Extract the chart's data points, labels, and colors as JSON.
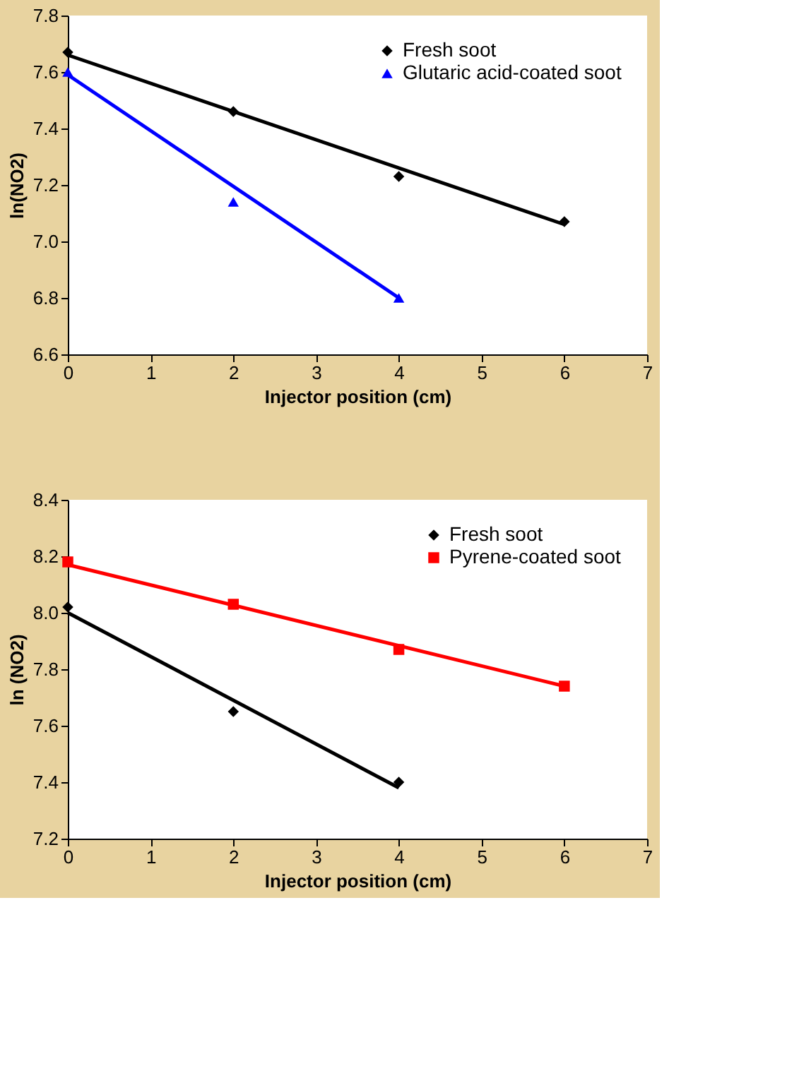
{
  "chart_data": [
    {
      "type": "scatter",
      "xlabel": "Injector position (cm)",
      "ylabel": "ln(NO2)",
      "xlim": [
        0,
        7
      ],
      "xticks": [
        0,
        1,
        2,
        3,
        4,
        5,
        6,
        7
      ],
      "ylim": [
        6.6,
        7.8
      ],
      "yticks": [
        {
          "value": 6.6,
          "label": "6.6"
        },
        {
          "value": 6.8,
          "label": "6.8"
        },
        {
          "value": 7.0,
          "label": "7.0"
        },
        {
          "value": 7.2,
          "label": "7.2"
        },
        {
          "value": 7.4,
          "label": "7.4"
        },
        {
          "value": 7.6,
          "label": "7.6"
        },
        {
          "value": 7.8,
          "label": "7.8"
        }
      ],
      "grid": false,
      "legend": "top right",
      "x": [
        0,
        2,
        4,
        6
      ],
      "series": [
        {
          "name": "Fresh soot",
          "color": "#000000",
          "marker": "diamond",
          "values": [
            7.67,
            7.46,
            7.23,
            7.07
          ]
        },
        {
          "name": "Glutaric acid-coated soot",
          "color": "#0000ff",
          "marker": "triangle",
          "x": [
            0,
            2,
            4
          ],
          "values": [
            7.6,
            7.14,
            6.8
          ]
        },
        {
          "type": "line",
          "color": "#000000",
          "x": [
            0,
            6
          ],
          "values": [
            7.66,
            7.06
          ]
        },
        {
          "type": "line",
          "color": "#0000ff",
          "x": [
            0,
            4
          ],
          "values": [
            7.59,
            6.8
          ]
        }
      ]
    },
    {
      "type": "scatter",
      "xlabel": "Injector position (cm)",
      "ylabel": "ln (NO2)",
      "xlim": [
        0,
        7
      ],
      "xticks": [
        0,
        1,
        2,
        3,
        4,
        5,
        6,
        7
      ],
      "ylim": [
        7.2,
        8.4
      ],
      "yticks": [
        {
          "value": 7.2,
          "label": "7.2"
        },
        {
          "value": 7.4,
          "label": "7.4"
        },
        {
          "value": 7.6,
          "label": "7.6"
        },
        {
          "value": 7.8,
          "label": "7.8"
        },
        {
          "value": 8.0,
          "label": "8.0"
        },
        {
          "value": 8.2,
          "label": "8.2"
        },
        {
          "value": 8.4,
          "label": "8.4"
        }
      ],
      "grid": false,
      "legend": "top right",
      "x": [
        0,
        2,
        4,
        6
      ],
      "series": [
        {
          "name": "Fresh soot",
          "color": "#000000",
          "marker": "diamond",
          "x": [
            0,
            2,
            4
          ],
          "values": [
            8.02,
            7.65,
            7.4
          ]
        },
        {
          "name": "Pyrene-coated soot",
          "color": "#ff0000",
          "marker": "square",
          "values": [
            8.18,
            8.03,
            7.87,
            7.74
          ]
        },
        {
          "type": "line",
          "color": "#000000",
          "x": [
            0,
            4
          ],
          "values": [
            8.0,
            7.38
          ]
        },
        {
          "type": "line",
          "color": "#ff0000",
          "x": [
            0,
            6
          ],
          "values": [
            8.17,
            7.74
          ]
        }
      ]
    }
  ]
}
